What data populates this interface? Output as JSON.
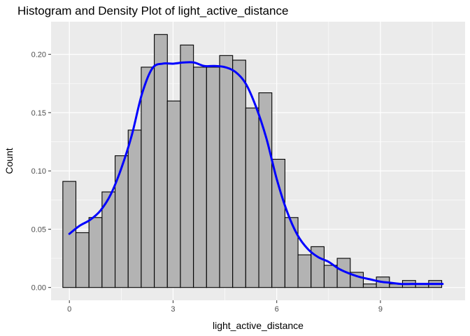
{
  "chart_data": {
    "type": "bar",
    "title": "Histogram and Density Plot of light_active_distance",
    "xlabel": "light_active_distance",
    "ylabel": "Count",
    "xlim": [
      -0.53,
      11.45
    ],
    "ylim": [
      -0.011,
      0.228
    ],
    "x_ticks": [
      0,
      3,
      6,
      9
    ],
    "y_ticks": [
      0.0,
      0.05,
      0.1,
      0.15,
      0.2
    ],
    "y_tick_labels": [
      "0.00",
      "0.05",
      "0.10",
      "0.15",
      "0.20"
    ],
    "grid": true,
    "legend": "none",
    "colors": {
      "panel_background": "#ebebeb",
      "grid_major": "#ffffff",
      "bar_fill": "#b3b3b3",
      "bar_outline": "#000000",
      "density_line": "#0000ff"
    },
    "histogram": {
      "binwidth": 0.378,
      "bins": [
        {
          "x": 0.0,
          "value": 0.091
        },
        {
          "x": 0.378,
          "value": 0.047
        },
        {
          "x": 0.756,
          "value": 0.06
        },
        {
          "x": 1.134,
          "value": 0.082
        },
        {
          "x": 1.512,
          "value": 0.113
        },
        {
          "x": 1.89,
          "value": 0.135
        },
        {
          "x": 2.268,
          "value": 0.189
        },
        {
          "x": 2.646,
          "value": 0.217
        },
        {
          "x": 3.024,
          "value": 0.16
        },
        {
          "x": 3.402,
          "value": 0.208
        },
        {
          "x": 3.78,
          "value": 0.189
        },
        {
          "x": 4.158,
          "value": 0.189
        },
        {
          "x": 4.536,
          "value": 0.199
        },
        {
          "x": 4.914,
          "value": 0.195
        },
        {
          "x": 5.292,
          "value": 0.154
        },
        {
          "x": 5.67,
          "value": 0.167
        },
        {
          "x": 6.048,
          "value": 0.11
        },
        {
          "x": 6.426,
          "value": 0.06
        },
        {
          "x": 6.804,
          "value": 0.028
        },
        {
          "x": 7.182,
          "value": 0.035
        },
        {
          "x": 7.56,
          "value": 0.019
        },
        {
          "x": 7.938,
          "value": 0.025
        },
        {
          "x": 8.316,
          "value": 0.013
        },
        {
          "x": 8.694,
          "value": 0.003
        },
        {
          "x": 9.072,
          "value": 0.009
        },
        {
          "x": 9.45,
          "value": 0.003
        },
        {
          "x": 9.828,
          "value": 0.006
        },
        {
          "x": 10.206,
          "value": 0.003
        },
        {
          "x": 10.584,
          "value": 0.006
        }
      ]
    },
    "density": {
      "x": [
        0.0,
        0.3,
        0.6,
        0.9,
        1.2,
        1.5,
        1.8,
        2.1,
        2.4,
        2.7,
        3.0,
        3.3,
        3.6,
        3.9,
        4.2,
        4.5,
        4.8,
        5.1,
        5.4,
        5.7,
        6.0,
        6.3,
        6.6,
        6.9,
        7.2,
        7.5,
        7.8,
        8.1,
        8.4,
        8.7,
        9.0,
        9.3,
        9.6,
        9.9,
        10.2,
        10.5,
        10.8
      ],
      "y": [
        0.046,
        0.053,
        0.058,
        0.066,
        0.08,
        0.102,
        0.13,
        0.166,
        0.188,
        0.192,
        0.192,
        0.193,
        0.193,
        0.19,
        0.19,
        0.189,
        0.185,
        0.175,
        0.155,
        0.128,
        0.093,
        0.065,
        0.045,
        0.033,
        0.026,
        0.022,
        0.016,
        0.012,
        0.009,
        0.007,
        0.005,
        0.004,
        0.003,
        0.003,
        0.003,
        0.003,
        0.003
      ]
    }
  }
}
